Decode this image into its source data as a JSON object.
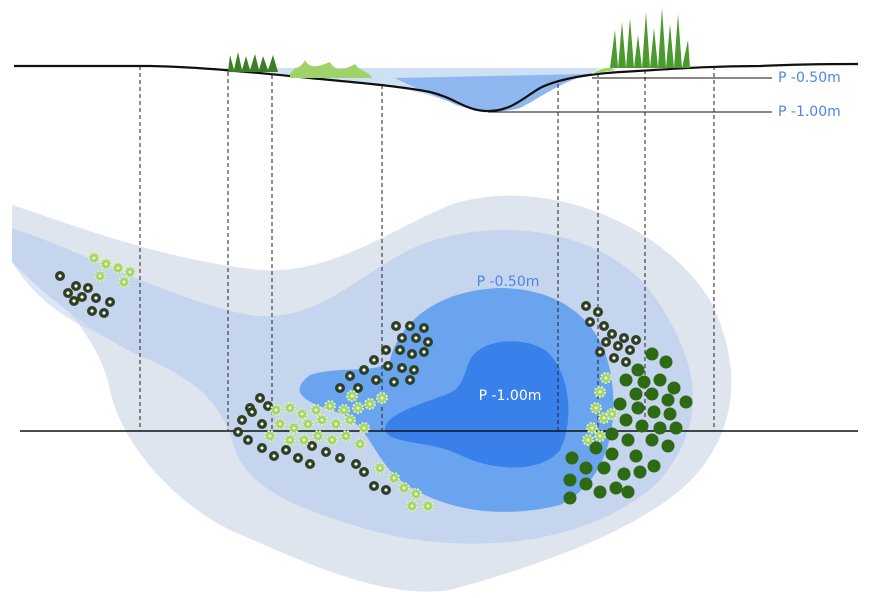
{
  "section": {
    "labels": [
      "P -0.50m",
      "P -1.00m"
    ]
  },
  "plan": {
    "labels": [
      "P -0.50m",
      "P -1.00m"
    ]
  }
}
